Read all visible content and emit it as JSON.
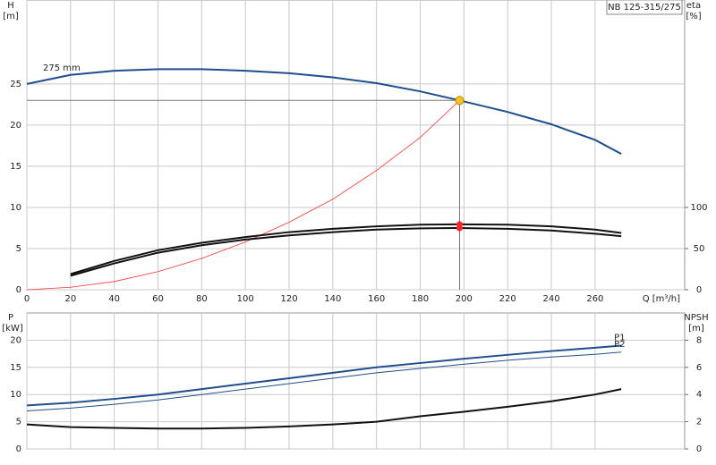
{
  "chart_data": [
    {
      "type": "line",
      "title": "NB 125-315/275",
      "ylabel": "H",
      "yunit": "[m]",
      "y2label": "eta",
      "y2unit": "[%]",
      "xlabel": "Q [m³/h]",
      "xlim": [
        0,
        301
      ],
      "xticks": [
        0,
        20,
        40,
        60,
        80,
        100,
        120,
        140,
        160,
        180,
        200,
        220,
        240,
        260
      ],
      "ylim": [
        0,
        35.2
      ],
      "yticks": [
        0,
        5,
        10,
        15,
        20,
        25
      ],
      "y2lim": [
        0,
        352
      ],
      "y2ticks": [
        0,
        50,
        100
      ],
      "grid": true,
      "operating_point": {
        "x": 198,
        "y": 23,
        "color": "#f5c518"
      },
      "series": [
        {
          "name": "275 mm",
          "name_at": "start",
          "color": "#1f4e8c",
          "line_width": 2,
          "x": [
            0,
            20,
            40,
            60,
            80,
            100,
            120,
            140,
            160,
            180,
            198,
            220,
            240,
            260,
            272
          ],
          "values": [
            25,
            26.1,
            26.6,
            26.8,
            26.8,
            26.6,
            26.3,
            25.8,
            25.1,
            24.1,
            23,
            21.6,
            20.1,
            18.2,
            16.5
          ]
        },
        {
          "color": "#ff3333",
          "line_width": 0.8,
          "x": [
            0,
            20,
            40,
            60,
            80,
            100,
            120,
            140,
            160,
            180,
            198
          ],
          "values": [
            0,
            0.3,
            1,
            2.2,
            3.8,
            5.8,
            8.2,
            11,
            14.5,
            18.5,
            23
          ]
        },
        {
          "color": "#111111",
          "line_width": 2,
          "axis": "y2",
          "duty_color": "#ff2222",
          "x": [
            20,
            40,
            60,
            80,
            100,
            120,
            140,
            160,
            180,
            198,
            220,
            240,
            260,
            272
          ],
          "values": [
            19,
            35,
            48,
            57,
            64,
            70,
            74,
            77,
            79,
            79.5,
            79,
            77,
            73,
            69
          ]
        },
        {
          "color": "#111111",
          "line_width": 2,
          "axis": "y2",
          "duty_color": "#ff2222",
          "x": [
            20,
            40,
            60,
            80,
            100,
            120,
            140,
            160,
            180,
            198,
            220,
            240,
            260,
            272
          ],
          "values": [
            17,
            32,
            45,
            54,
            61,
            66,
            70,
            73,
            74.5,
            75,
            74,
            72,
            68,
            65
          ]
        }
      ]
    },
    {
      "type": "line",
      "ylabel": "P",
      "yunit": "[kW]",
      "y2label": "NPSH",
      "y2unit": "[m]",
      "xlim": [
        0,
        301
      ],
      "xticks": [
        0,
        20,
        40,
        60,
        80,
        100,
        120,
        140,
        160,
        180,
        200,
        220,
        240,
        260
      ],
      "ylim": [
        0,
        25
      ],
      "yticks": [
        0,
        5,
        10,
        15,
        20
      ],
      "y2lim": [
        0,
        10
      ],
      "y2ticks": [
        0,
        2,
        4,
        6,
        8
      ],
      "grid": true,
      "series": [
        {
          "name": "P1",
          "name_at": "end",
          "color": "#1f4e8c",
          "line_width": 2,
          "duty_color": "#ff2222",
          "x": [
            0,
            20,
            40,
            60,
            80,
            100,
            120,
            140,
            160,
            180,
            198,
            220,
            240,
            260,
            272
          ],
          "values": [
            8,
            8.5,
            9.2,
            10,
            11,
            12,
            13,
            14,
            15,
            15.8,
            16.5,
            17.3,
            18,
            18.6,
            19
          ]
        },
        {
          "name": "P2",
          "name_at": "end",
          "color": "#1f4e8c",
          "line_width": 1,
          "duty_color": "#ff2222",
          "x": [
            0,
            20,
            40,
            60,
            80,
            100,
            120,
            140,
            160,
            180,
            198,
            220,
            240,
            260,
            272
          ],
          "values": [
            7,
            7.5,
            8.2,
            9,
            10,
            11,
            12,
            13,
            14,
            14.8,
            15.5,
            16.3,
            16.9,
            17.4,
            17.8
          ]
        },
        {
          "color": "#111111",
          "line_width": 2,
          "axis": "y2",
          "duty_color": "#ff2222",
          "x": [
            0,
            20,
            40,
            60,
            80,
            100,
            120,
            140,
            160,
            180,
            198,
            220,
            240,
            260,
            272
          ],
          "values": [
            1.8,
            1.6,
            1.55,
            1.5,
            1.5,
            1.55,
            1.65,
            1.8,
            2.0,
            2.4,
            2.7,
            3.1,
            3.5,
            4.0,
            4.4
          ]
        }
      ]
    }
  ]
}
